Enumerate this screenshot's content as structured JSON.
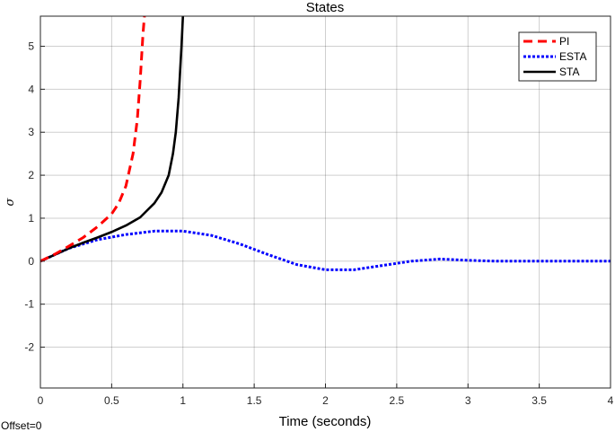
{
  "offset_label": "Offset=0",
  "chart_data": {
    "type": "line",
    "title": "States",
    "xlabel": "Time (seconds)",
    "ylabel": "σ",
    "xlim": [
      0,
      4
    ],
    "ylim": [
      -2.95,
      5.7
    ],
    "xticks": [
      0,
      0.5,
      1,
      1.5,
      2,
      2.5,
      3,
      3.5,
      4
    ],
    "xtick_labels": [
      "0",
      "0.5",
      "1",
      "1.5",
      "2",
      "2.5",
      "3",
      "3.5",
      "4"
    ],
    "yticks": [
      -2,
      -1,
      0,
      1,
      2,
      3,
      4,
      5
    ],
    "ytick_labels": [
      "-2",
      "-1",
      "0",
      "1",
      "2",
      "3",
      "4",
      "5"
    ],
    "grid": true,
    "legend_position": "top-right",
    "series": [
      {
        "name": "PI",
        "color": "#ff0000",
        "style": "dashed",
        "x": [
          0,
          0.1,
          0.2,
          0.3,
          0.4,
          0.5,
          0.55,
          0.6,
          0.65,
          0.68,
          0.7,
          0.72,
          0.73
        ],
        "y": [
          0,
          0.16,
          0.35,
          0.55,
          0.8,
          1.1,
          1.35,
          1.75,
          2.5,
          3.3,
          4.2,
          5.3,
          5.7
        ]
      },
      {
        "name": "ESTA",
        "color": "#0000ff",
        "style": "dotted",
        "x": [
          0,
          0.2,
          0.4,
          0.6,
          0.8,
          1.0,
          1.2,
          1.4,
          1.6,
          1.8,
          2.0,
          2.2,
          2.4,
          2.6,
          2.8,
          3.0,
          3.2,
          3.4,
          3.6,
          3.8,
          4.0
        ],
        "y": [
          0,
          0.3,
          0.5,
          0.62,
          0.7,
          0.7,
          0.6,
          0.4,
          0.15,
          -0.08,
          -0.2,
          -0.2,
          -0.1,
          0.0,
          0.05,
          0.02,
          0.0,
          0.0,
          0.0,
          0.0,
          0.0
        ]
      },
      {
        "name": "STA",
        "color": "#000000",
        "style": "solid",
        "x": [
          0,
          0.1,
          0.2,
          0.3,
          0.4,
          0.5,
          0.6,
          0.7,
          0.8,
          0.85,
          0.9,
          0.93,
          0.95,
          0.97,
          0.98,
          0.99,
          1.0
        ],
        "y": [
          0,
          0.15,
          0.3,
          0.43,
          0.55,
          0.68,
          0.83,
          1.02,
          1.35,
          1.6,
          2.0,
          2.5,
          3.0,
          3.8,
          4.4,
          5.0,
          5.7
        ]
      }
    ]
  }
}
